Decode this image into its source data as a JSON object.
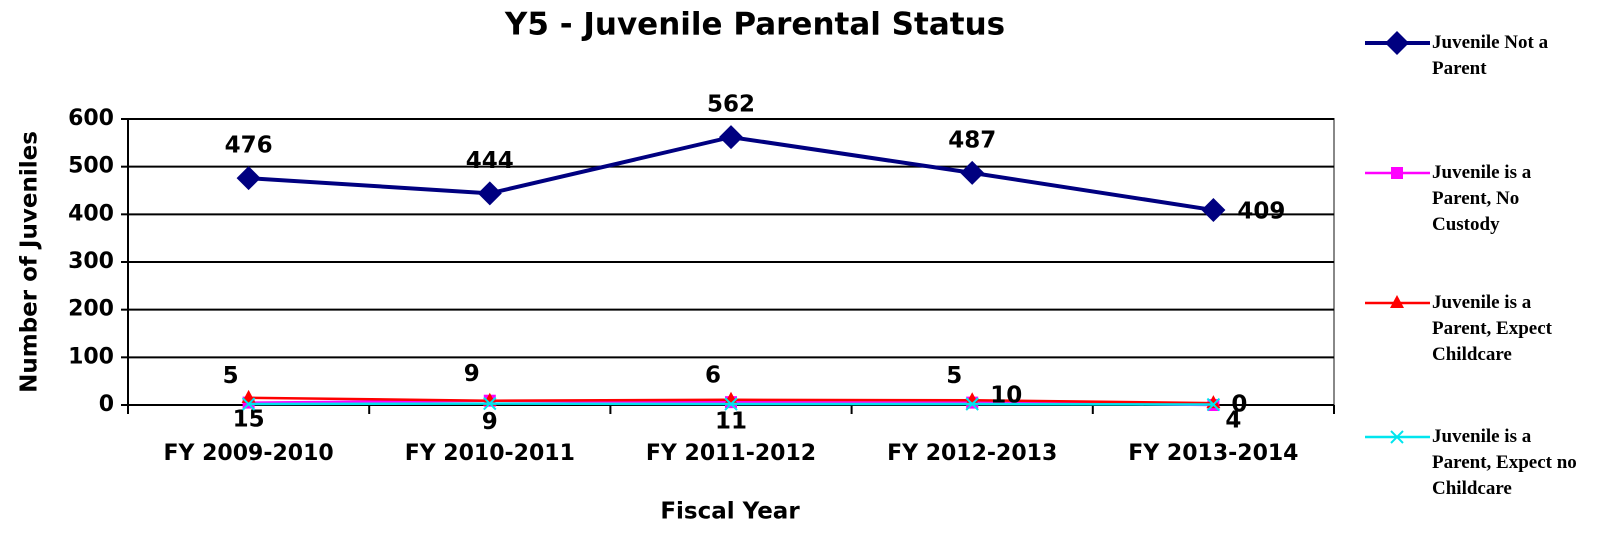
{
  "chart_data": {
    "type": "line",
    "title": "Y5 - Juvenile Parental Status",
    "x_label": "Fiscal Year",
    "y_label": "Number of Juveniles",
    "categories": [
      "FY 2009-2010",
      "FY 2010-2011",
      "FY 2011-2012",
      "FY 2012-2013",
      "FY 2013-2014"
    ],
    "ylim": [
      0,
      600
    ],
    "yticks": [
      0,
      100,
      200,
      300,
      400,
      500,
      600
    ],
    "grid": true,
    "legend": "right",
    "series": [
      {
        "name": "Juvenile Not a Parent",
        "color": "#000080",
        "marker": "diamond",
        "values": [
          476,
          444,
          562,
          487,
          409
        ]
      },
      {
        "name": "Juvenile is a Parent, No Custody",
        "color": "#ff00ff",
        "marker": "square",
        "values": [
          5,
          9,
          6,
          5,
          0
        ]
      },
      {
        "name": "Juvenile is a Parent, Expect Childcare",
        "color": "#ff0000",
        "marker": "triangle",
        "values": [
          15,
          9,
          11,
          10,
          4
        ]
      },
      {
        "name": "Juvenile is a Parent, Expect no Childcare",
        "color": "#00e5ee",
        "marker": "x",
        "values": [
          2,
          3,
          2,
          2,
          1
        ]
      }
    ]
  }
}
